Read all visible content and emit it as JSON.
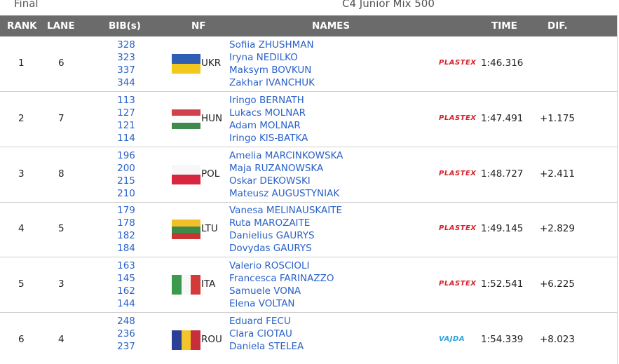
{
  "header": {
    "phase": "Final",
    "event": "C4 Junior Mix 500"
  },
  "table": {
    "columns": [
      "RANK",
      "LANE",
      "BIB(s)",
      "NF",
      "NAMES",
      "TIME",
      "DIF."
    ],
    "rows": [
      {
        "rank": 1,
        "lane": 6,
        "bibs": [
          328,
          323,
          337,
          344
        ],
        "nf": "UKR",
        "names": [
          "Sofiia ZHUSHMAN",
          "Iryna NEDILKO",
          "Maksym BOVKUN",
          "Zakhar IVANCHUK"
        ],
        "sponsor": "PLASTEX",
        "time": "1:46.316"
      },
      {
        "rank": 2,
        "lane": 7,
        "bibs": [
          113,
          127,
          121,
          114
        ],
        "nf": "HUN",
        "names": [
          "Iringo BERNATH",
          "Lukacs MOLNAR",
          "Adam MOLNAR",
          "Iringo KIS-BATKA"
        ],
        "sponsor": "PLASTEX",
        "time": "1:47.491",
        "dif": "+1.175"
      },
      {
        "rank": 3,
        "lane": 8,
        "bibs": [
          196,
          200,
          215,
          210
        ],
        "nf": "POL",
        "names": [
          "Amelia MARCINKOWSKA",
          "Maja RUZANOWSKA",
          "Oskar DEKOWSKI",
          "Mateusz AUGUSTYNIAK"
        ],
        "sponsor": "PLASTEX",
        "time": "1:48.727",
        "dif": "+2.411"
      },
      {
        "rank": 4,
        "lane": 5,
        "bibs": [
          179,
          178,
          182,
          184
        ],
        "nf": "LTU",
        "names": [
          "Vanesa MELINAUSKAITE",
          "Ruta MAROZAITE",
          "Danielius GAURYS",
          "Dovydas GAURYS"
        ],
        "sponsor": "PLASTEX",
        "time": "1:49.145",
        "dif": "+2.829"
      },
      {
        "rank": 5,
        "lane": 3,
        "bibs": [
          163,
          145,
          162,
          144
        ],
        "nf": "ITA",
        "names": [
          "Valerio ROSCIOLI",
          "Francesca FARINAZZO",
          "Samuele VONA",
          "Elena VOLTAN"
        ],
        "sponsor": "PLASTEX",
        "time": "1:52.541",
        "dif": "+6.225"
      },
      {
        "rank": 6,
        "lane": 4,
        "bibs": [
          248,
          236,
          237
        ],
        "nf": "ROU",
        "names": [
          "Eduard FECU",
          "Clara CIOTAU",
          "Daniela STELEA"
        ],
        "sponsor": "VAJDA",
        "time": "1:54.339",
        "dif": "+8.023"
      }
    ]
  }
}
